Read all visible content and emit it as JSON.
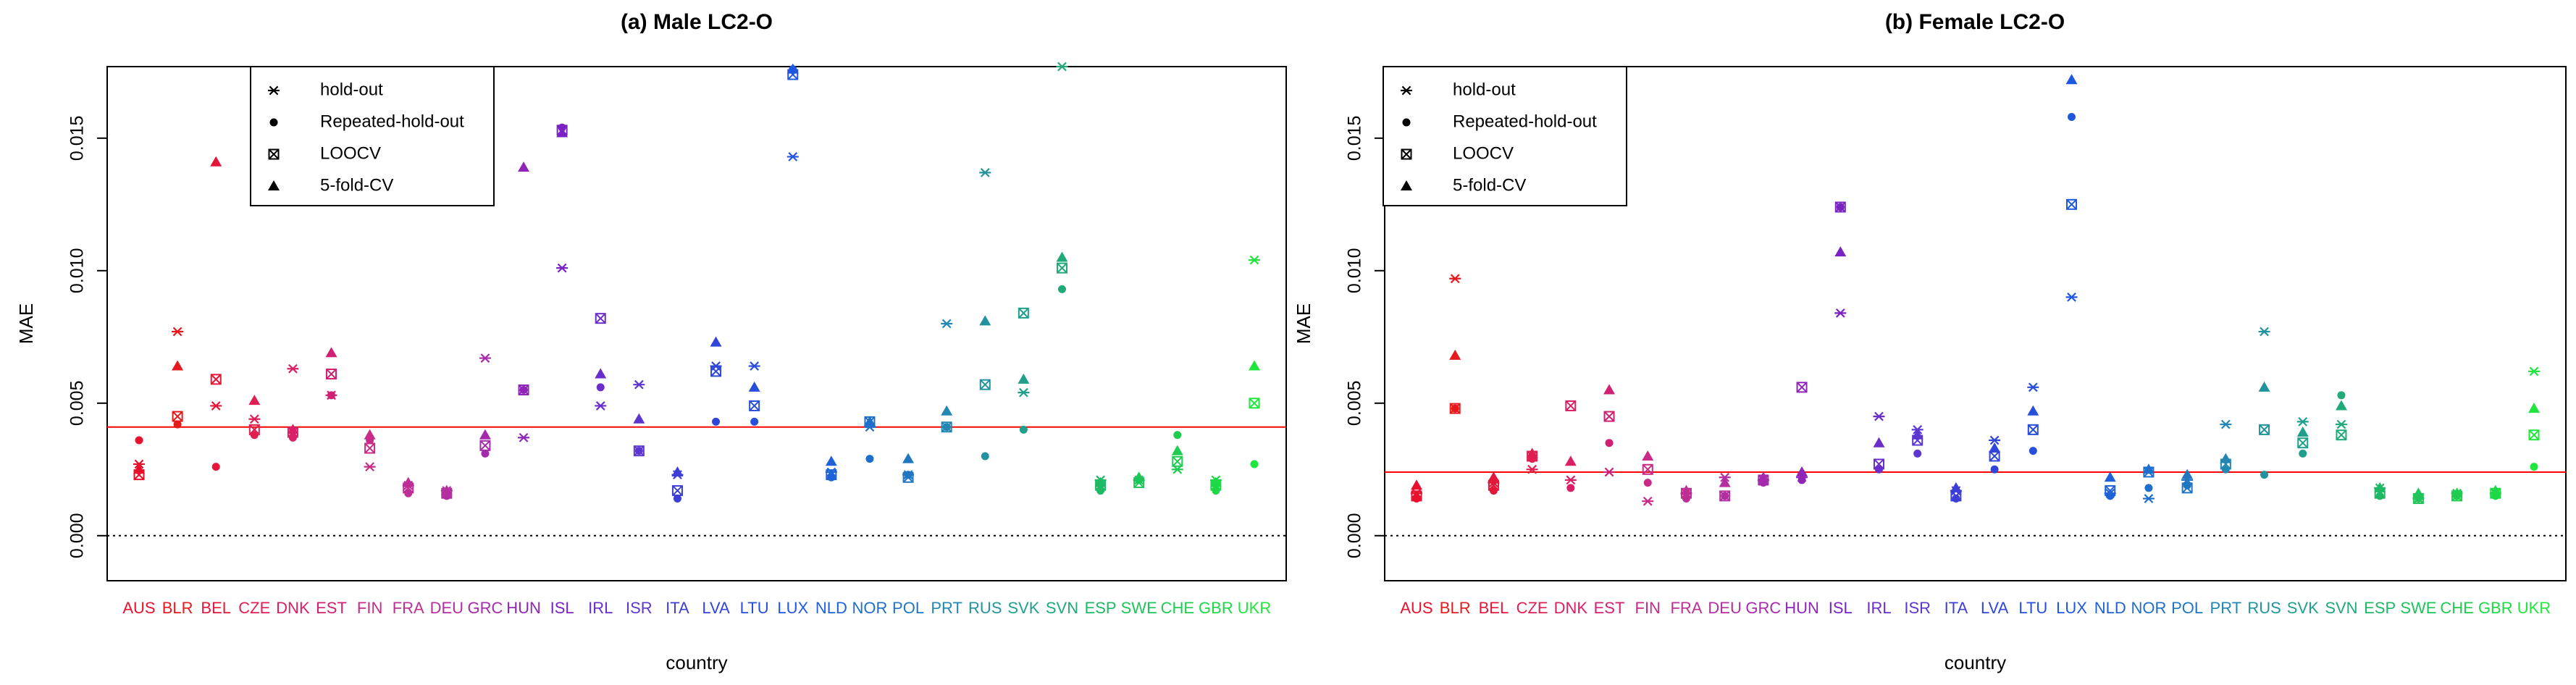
{
  "chart_data": [
    {
      "type": "scatter",
      "title": "(a) Male LC2-O",
      "xlabel": "country",
      "ylabel": "MAE",
      "ylim": [
        -0.0017,
        0.0177
      ],
      "yticks": [
        "0.000",
        "0.005",
        "0.010",
        "0.015"
      ],
      "reference_line": 0.0041,
      "zero_line": 0.0,
      "legend_position": "top-left",
      "legend": [
        "hold-out",
        "Repeated-hold-out",
        "LOOCV",
        "5-fold-CV"
      ],
      "categories": [
        "AUS",
        "BLR",
        "BEL",
        "CZE",
        "DNK",
        "EST",
        "FIN",
        "FRA",
        "DEU",
        "GRC",
        "HUN",
        "ISL",
        "IRL",
        "ISR",
        "ITA",
        "LVA",
        "LTU",
        "LUX",
        "NLD",
        "NOR",
        "POL",
        "PRT",
        "RUS",
        "SVK",
        "SVN",
        "ESP",
        "SWE",
        "CHE",
        "GBR",
        "UKR"
      ],
      "colors": [
        "#e8112d",
        "#e41a1c",
        "#e3173a",
        "#df1f52",
        "#d91f66",
        "#d11f73",
        "#c72b87",
        "#bd2f95",
        "#b32e9f",
        "#a62aad",
        "#8f26b8",
        "#7a23c2",
        "#6a2ecb",
        "#5b36d1",
        "#3c3ed6",
        "#2f46d9",
        "#284edc",
        "#1f57e0",
        "#1f62d8",
        "#1e6ecc",
        "#2077c0",
        "#2287b2",
        "#21939f",
        "#20a08c",
        "#1faa78",
        "#1fb865",
        "#1fc45a",
        "#20cc50",
        "#1dd847",
        "#1fe63c"
      ],
      "series": [
        {
          "name": "hold-out",
          "values": [
            0.0027,
            0.0077,
            0.0049,
            0.0044,
            0.0063,
            0.0053,
            0.0026,
            0.0019,
            0.0017,
            0.0067,
            0.0037,
            0.0101,
            0.0049,
            0.0057,
            0.0023,
            0.0064,
            0.0064,
            0.0143,
            0.0024,
            0.0041,
            0.0023,
            0.008,
            0.0137,
            0.0054,
            0.0177,
            0.0021,
            0.0021,
            0.0025,
            0.0021,
            0.0104
          ]
        },
        {
          "name": "Repeated-hold-out",
          "values": [
            0.0036,
            0.0042,
            0.0026,
            0.0038,
            0.0037,
            0.0053,
            0.0036,
            0.0016,
            0.0015,
            0.0031,
            0.0055,
            0.0154,
            0.0056,
            0.0032,
            0.0014,
            0.0043,
            0.0043,
            0.0176,
            0.0022,
            0.0029,
            0.0023,
            0.0041,
            0.003,
            0.004,
            0.0093,
            0.0017,
            0.0021,
            0.0038,
            0.0017,
            0.0027
          ]
        },
        {
          "name": "LOOCV",
          "values": [
            0.0023,
            0.0045,
            0.0059,
            0.004,
            0.0039,
            0.0061,
            0.0033,
            0.0018,
            0.0016,
            0.0034,
            0.0055,
            0.0153,
            0.0082,
            0.0032,
            0.0017,
            0.0062,
            0.0049,
            0.0174,
            0.0023,
            0.0043,
            0.0022,
            0.0041,
            0.0057,
            0.0084,
            0.0101,
            0.0019,
            0.002,
            0.0028,
            0.0019,
            0.005
          ]
        },
        {
          "name": "5-fold-CV",
          "values": [
            0.0025,
            0.0064,
            0.0141,
            0.0051,
            0.004,
            0.0069,
            0.0038,
            0.002,
            0.0017,
            0.0038,
            0.0139,
            0.0152,
            0.0061,
            0.0044,
            0.0024,
            0.0073,
            0.0056,
            0.0176,
            0.0028,
            0.0043,
            0.0029,
            0.0047,
            0.0081,
            0.0059,
            0.0105,
            0.002,
            0.0022,
            0.0032,
            0.002,
            0.0064
          ]
        }
      ]
    },
    {
      "type": "scatter",
      "title": "(b) Female LC2-O",
      "xlabel": "country",
      "ylabel": "MAE",
      "ylim": [
        -0.0017,
        0.0177
      ],
      "yticks": [
        "0.000",
        "0.005",
        "0.010",
        "0.015"
      ],
      "reference_line": 0.0024,
      "zero_line": 0.0,
      "legend_position": "top-left",
      "legend": [
        "hold-out",
        "Repeated-hold-out",
        "LOOCV",
        "5-fold-CV"
      ],
      "categories": [
        "AUS",
        "BLR",
        "BEL",
        "CZE",
        "DNK",
        "EST",
        "FIN",
        "FRA",
        "DEU",
        "GRC",
        "HUN",
        "ISL",
        "IRL",
        "ISR",
        "ITA",
        "LVA",
        "LTU",
        "LUX",
        "NLD",
        "NOR",
        "POL",
        "PRT",
        "RUS",
        "SVK",
        "SVN",
        "ESP",
        "SWE",
        "CHE",
        "GBR",
        "UKR"
      ],
      "colors": [
        "#e8112d",
        "#e41a1c",
        "#e3173a",
        "#df1f52",
        "#d91f66",
        "#d11f73",
        "#c72b87",
        "#bd2f95",
        "#b32e9f",
        "#a62aad",
        "#8f26b8",
        "#7a23c2",
        "#6a2ecb",
        "#5b36d1",
        "#3c3ed6",
        "#2f46d9",
        "#284edc",
        "#1f57e0",
        "#1f62d8",
        "#1e6ecc",
        "#2077c0",
        "#2287b2",
        "#21939f",
        "#20a08c",
        "#1faa78",
        "#1fb865",
        "#1fc45a",
        "#20cc50",
        "#1dd847",
        "#1fe63c"
      ],
      "series": [
        {
          "name": "hold-out",
          "values": [
            0.0016,
            0.0097,
            0.002,
            0.0025,
            0.0021,
            0.0024,
            0.0013,
            0.0016,
            0.0022,
            0.0021,
            0.0022,
            0.0084,
            0.0045,
            0.004,
            0.0017,
            0.0036,
            0.0056,
            0.009,
            0.0016,
            0.0014,
            0.0021,
            0.0042,
            0.0077,
            0.0043,
            0.0042,
            0.0018,
            0.0014,
            0.0016,
            0.0016,
            0.0062
          ]
        },
        {
          "name": "Repeated-hold-out",
          "values": [
            0.0014,
            0.0048,
            0.0017,
            0.0029,
            0.0018,
            0.0035,
            0.002,
            0.0014,
            0.0015,
            0.002,
            0.0021,
            0.0124,
            0.0025,
            0.0031,
            0.0014,
            0.0025,
            0.0032,
            0.0158,
            0.0015,
            0.0018,
            0.0019,
            0.0025,
            0.0023,
            0.0031,
            0.0053,
            0.0015,
            0.0014,
            0.0015,
            0.0015,
            0.0026
          ]
        },
        {
          "name": "LOOCV",
          "values": [
            0.0015,
            0.0048,
            0.0019,
            0.003,
            0.0049,
            0.0045,
            0.0025,
            0.0016,
            0.0015,
            0.0021,
            0.0056,
            0.0124,
            0.0027,
            0.0036,
            0.0015,
            0.003,
            0.004,
            0.0125,
            0.0017,
            0.0024,
            0.0018,
            0.0027,
            0.004,
            0.0035,
            0.0038,
            0.0016,
            0.0014,
            0.0015,
            0.0016,
            0.0038
          ]
        },
        {
          "name": "5-fold-CV",
          "values": [
            0.0019,
            0.0068,
            0.0022,
            0.0031,
            0.0028,
            0.0055,
            0.003,
            0.0017,
            0.002,
            0.0022,
            0.0024,
            0.0107,
            0.0035,
            0.0038,
            0.0018,
            0.0033,
            0.0047,
            0.0172,
            0.0022,
            0.0025,
            0.0023,
            0.0029,
            0.0056,
            0.0039,
            0.0049,
            0.0018,
            0.0016,
            0.0016,
            0.0017,
            0.0048
          ]
        }
      ]
    }
  ]
}
